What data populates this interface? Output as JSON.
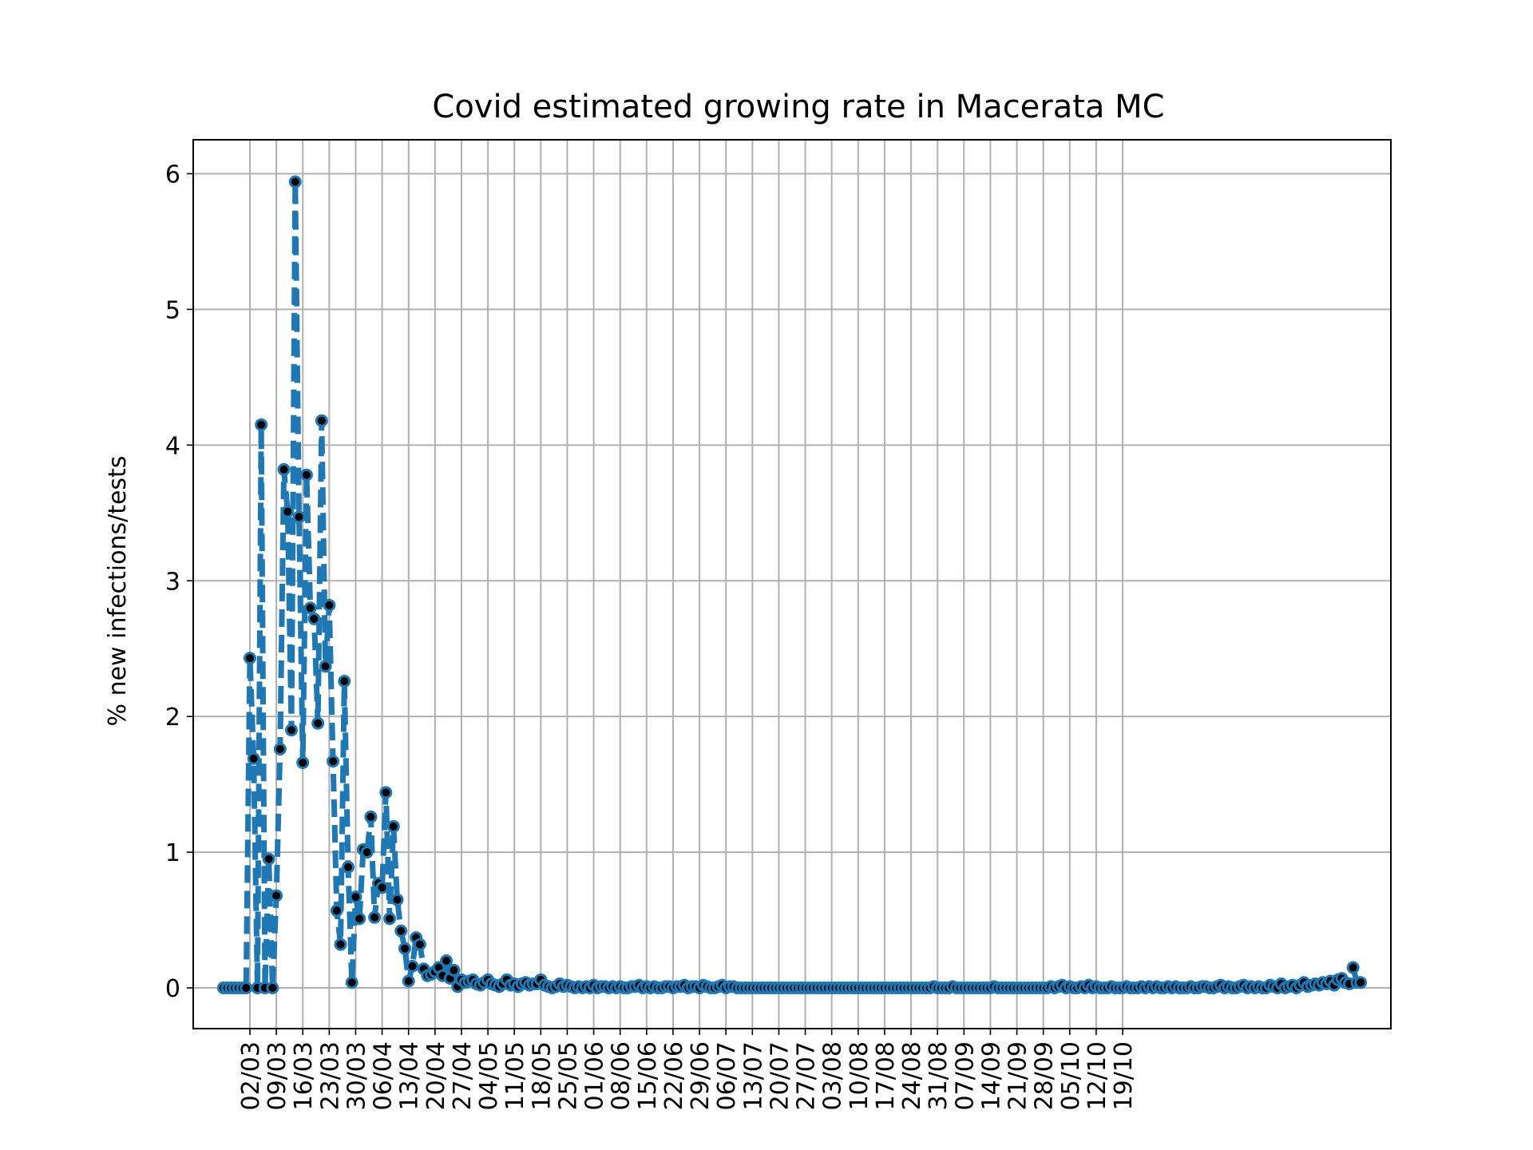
{
  "chart_data": {
    "type": "line",
    "title": "Covid estimated growing rate in Macerata MC",
    "xlabel": "",
    "ylabel": "% new infections/tests",
    "x_tick_labels": [
      "02/03",
      "09/03",
      "16/03",
      "23/03",
      "30/03",
      "06/04",
      "13/04",
      "20/04",
      "27/04",
      "04/05",
      "11/05",
      "18/05",
      "25/05",
      "01/06",
      "08/06",
      "15/06",
      "22/06",
      "29/06",
      "06/07",
      "13/07",
      "20/07",
      "27/07",
      "03/08",
      "10/08",
      "17/08",
      "24/08",
      "31/08",
      "07/09",
      "14/09",
      "21/09",
      "28/09",
      "05/10",
      "12/10",
      "19/10"
    ],
    "y_ticks": [
      0,
      1,
      2,
      3,
      4,
      5,
      6
    ],
    "ylim": [
      -0.3,
      6.25
    ],
    "x_start": "24/02",
    "grid": true,
    "line_color": "#1f77b4",
    "line_style": "dashed",
    "marker_color": "#000000",
    "series": [
      {
        "name": "",
        "values": [
          0,
          0,
          0,
          0,
          0,
          0,
          0,
          2.43,
          1.69,
          0,
          4.15,
          0,
          0.95,
          0,
          0.68,
          1.76,
          3.82,
          3.51,
          1.9,
          5.94,
          3.47,
          1.66,
          3.78,
          2.8,
          2.72,
          1.95,
          4.18,
          2.37,
          2.82,
          1.67,
          0.57,
          0.32,
          2.26,
          0.89,
          0.04,
          0.67,
          0.51,
          1.02,
          1.0,
          1.26,
          0.52,
          0.77,
          0.74,
          1.44,
          0.51,
          1.19,
          0.65,
          0.42,
          0.29,
          0.05,
          0.16,
          0.37,
          0.32,
          0.14,
          0.09,
          0.1,
          0.12,
          0.15,
          0.09,
          0.2,
          0.07,
          0.13,
          0.01,
          0.06,
          0.04,
          0.05,
          0.06,
          0.03,
          0.02,
          0.04,
          0.06,
          0.03,
          0.02,
          0.01,
          0.03,
          0.06,
          0.02,
          0.03,
          0.01,
          0.03,
          0.04,
          0.02,
          0.03,
          0.03,
          0.06,
          0.02,
          0.01,
          0.0,
          0.01,
          0.03,
          0.01,
          0.02,
          0.01,
          0.0,
          0.01,
          0.0,
          0.01,
          0.0,
          0.02,
          0.0,
          0.01,
          0.01,
          0.0,
          0.01,
          0.0,
          0.01,
          0.0,
          0.0,
          0.01,
          0.01,
          0.02,
          0.0,
          0.01,
          0.0,
          0.01,
          0.0,
          0.0,
          0.01,
          0.01,
          0.0,
          0.01,
          0.01,
          0.02,
          0.0,
          0.01,
          0.01,
          0.0,
          0.02,
          0.01,
          0.0,
          0.0,
          0.01,
          0.02,
          0.0,
          0.01,
          0.01,
          0.0,
          0.0,
          0.0,
          0.0,
          0.0,
          0.0,
          0.0,
          0.0,
          0.0,
          0.0,
          0.0,
          0.0,
          0.0,
          0.0,
          0.0,
          0.0,
          0.0,
          0.0,
          0.0,
          0.0,
          0.0,
          0.0,
          0.0,
          0.0,
          0.0,
          0.0,
          0.0,
          0.0,
          0.0,
          0.0,
          0.0,
          0.0,
          0.0,
          0.0,
          0.0,
          0.0,
          0.0,
          0.0,
          0.0,
          0.0,
          0.0,
          0.0,
          0.0,
          0.0,
          0.0,
          0.0,
          0.0,
          0.0,
          0.0,
          0.0,
          0.0,
          0.0,
          0.01,
          0.0,
          0.0,
          0.0,
          0.0,
          0.01,
          0.0,
          0.0,
          0.0,
          0.0,
          0.0,
          0.0,
          0.0,
          0.0,
          0.0,
          0.0,
          0.01,
          0.0,
          0.0,
          0.0,
          0.0,
          0.0,
          0.0,
          0.0,
          0.0,
          0.0,
          0.0,
          0.0,
          0.0,
          0.0,
          0.0,
          0.01,
          0.0,
          0.01,
          0.02,
          0.0,
          0.01,
          0.0,
          0.0,
          0.01,
          0.0,
          0.02,
          0.0,
          0.01,
          0.0,
          0.0,
          0.0,
          0.01,
          0.0,
          0.0,
          0.0,
          0.01,
          0.0,
          0.0,
          0.0,
          0.01,
          0.0,
          0.01,
          0.0,
          0.01,
          0.0,
          0.0,
          0.01,
          0.0,
          0.01,
          0.0,
          0.0,
          0.0,
          0.01,
          0.0,
          0.0,
          0.01,
          0.01,
          0.0,
          0.0,
          0.01,
          0.02,
          0.0,
          0.01,
          0.0,
          0.0,
          0.01,
          0.02,
          0.0,
          0.01,
          0.0,
          0.01,
          0.0,
          0.0,
          0.02,
          0.01,
          0.0,
          0.03,
          0.0,
          0.01,
          0.02,
          0.0,
          0.02,
          0.04,
          0.01,
          0.02,
          0.03,
          0.02,
          0.04,
          0.03,
          0.05,
          0.02,
          0.06,
          0.07,
          0.04,
          0.03,
          0.15,
          0.04,
          0.04
        ]
      }
    ]
  }
}
